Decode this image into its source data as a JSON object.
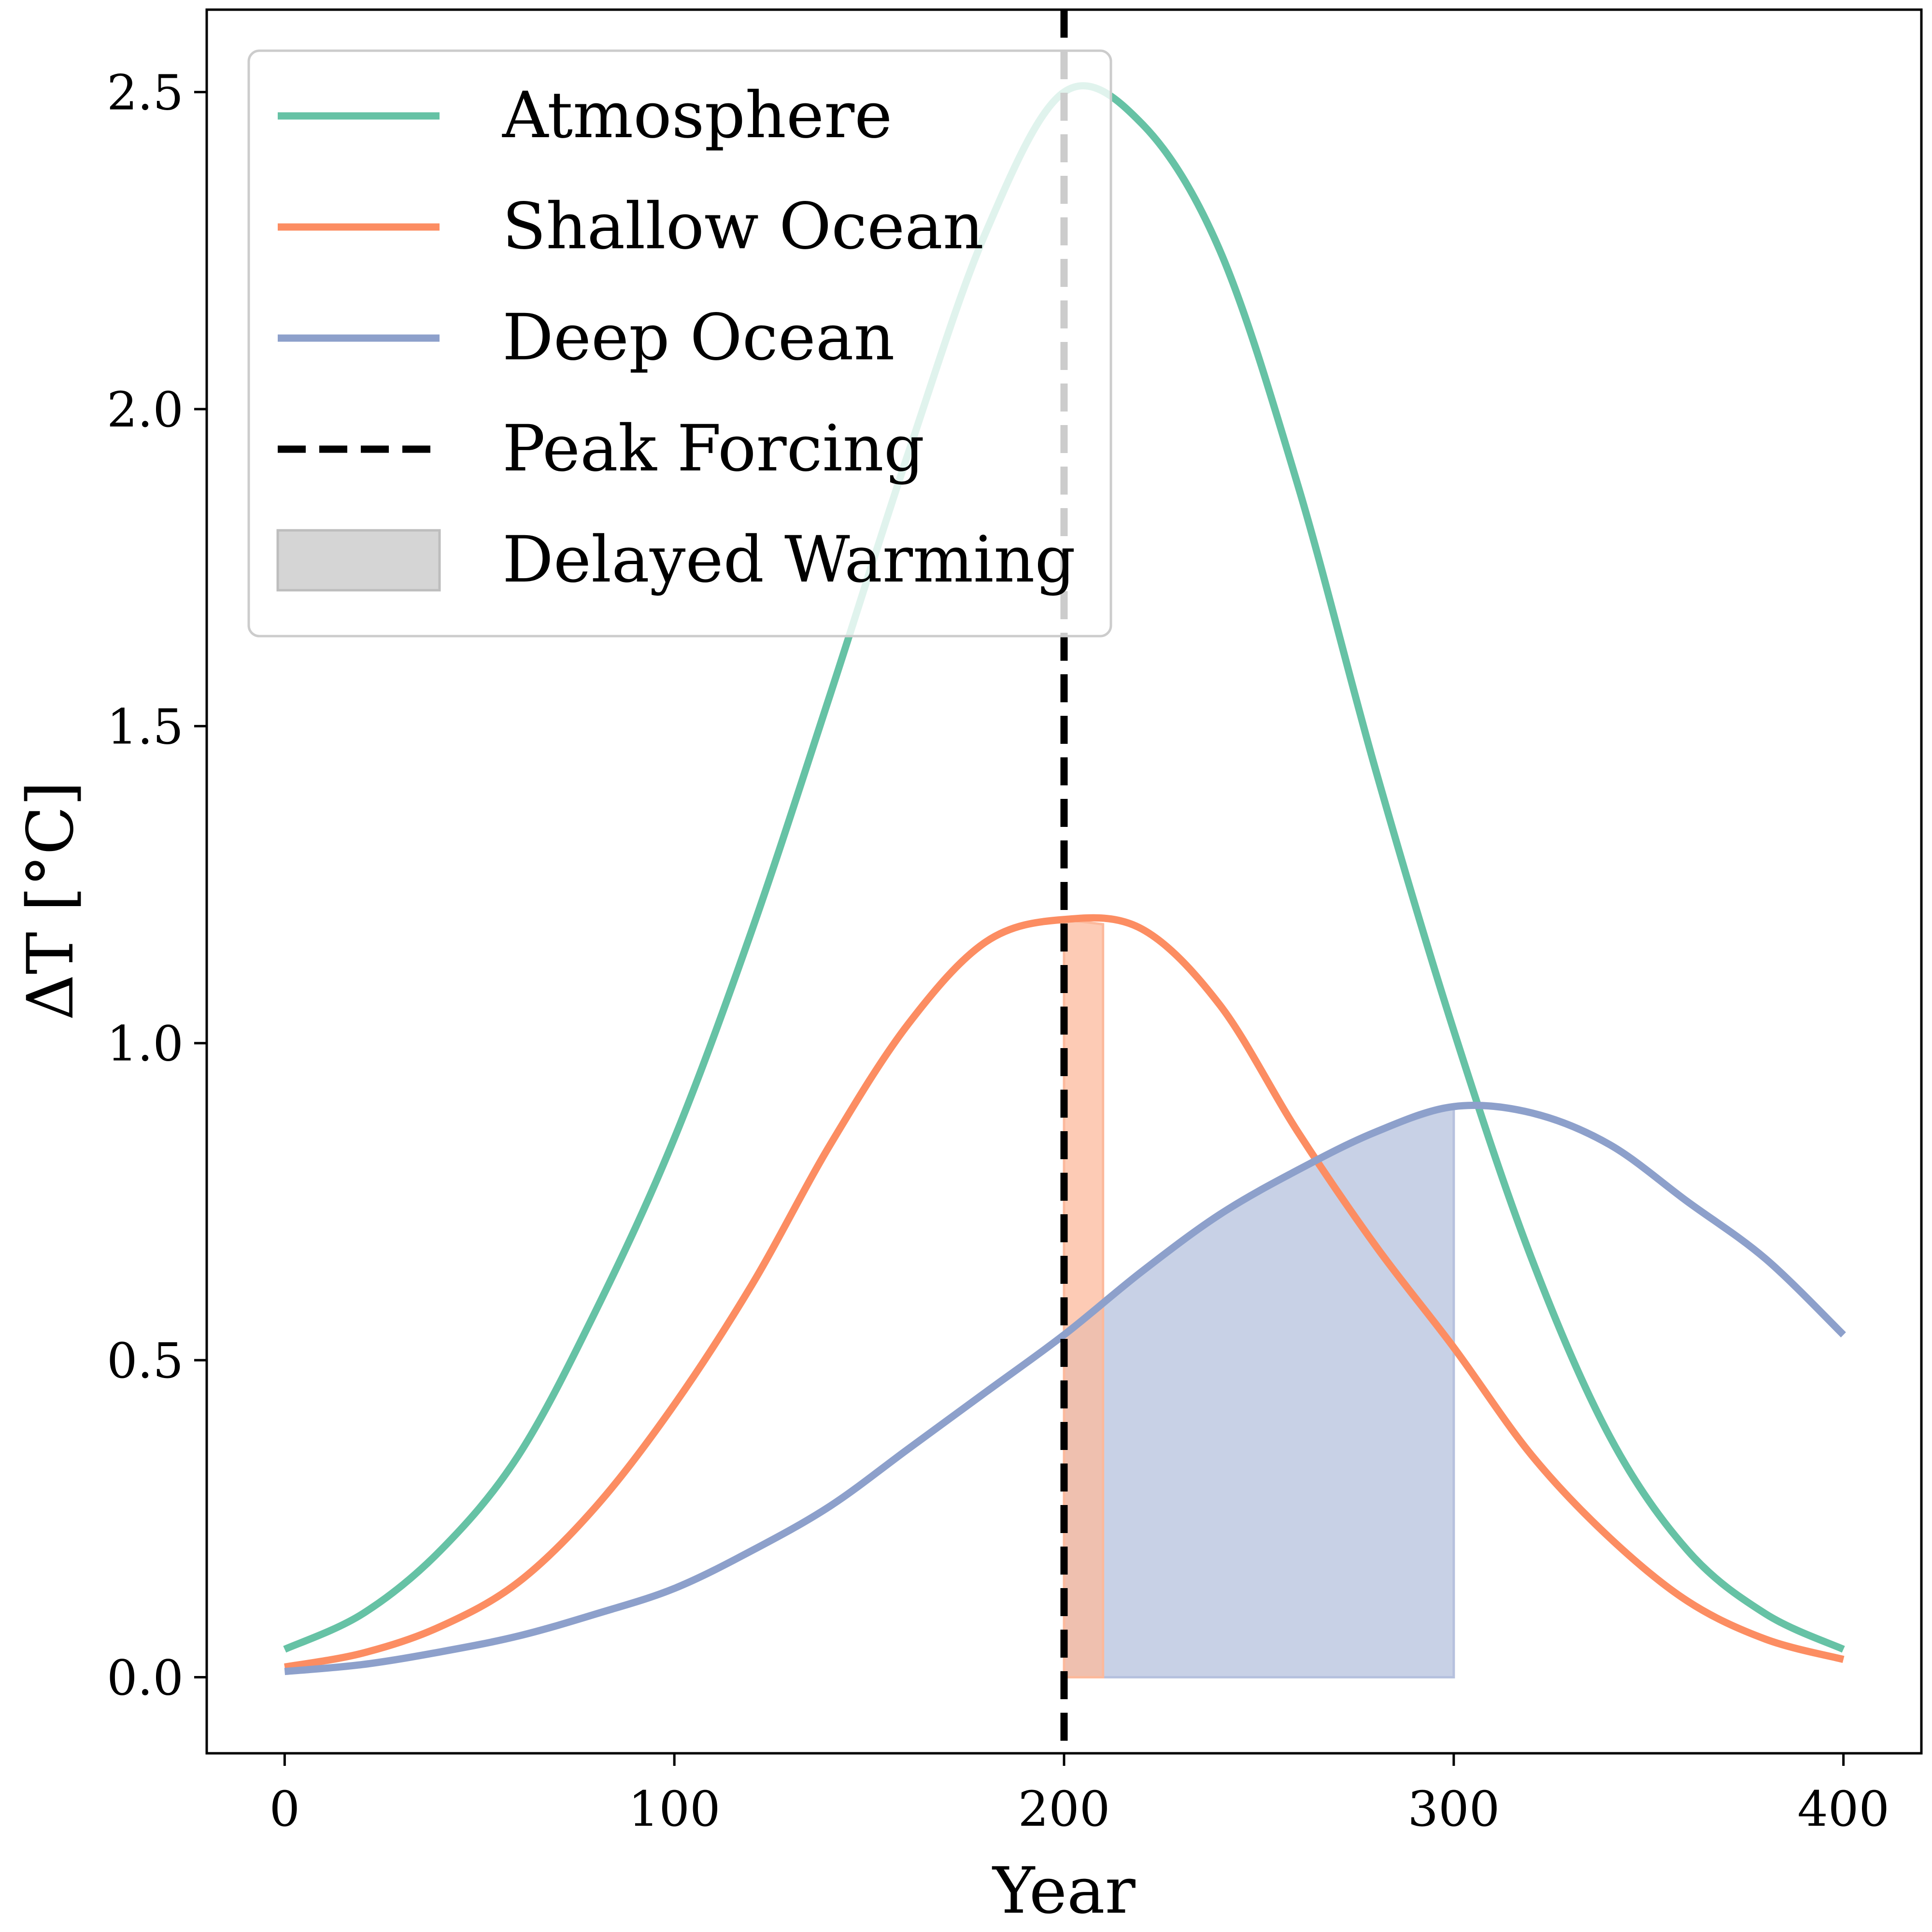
{
  "chart_data": {
    "type": "line",
    "xlabel": "Year",
    "ylabel": "ΔT [°C]",
    "xlim": [
      -20,
      420
    ],
    "ylim": [
      -0.12,
      2.63
    ],
    "x_ticks": [
      0,
      100,
      200,
      300,
      400
    ],
    "x_tick_labels": [
      "0",
      "100",
      "200",
      "300",
      "400"
    ],
    "y_ticks": [
      0.0,
      0.5,
      1.0,
      1.5,
      2.0,
      2.5
    ],
    "y_tick_labels": [
      "0.0",
      "0.5",
      "1.0",
      "1.5",
      "2.0",
      "2.5"
    ],
    "grid": false,
    "legend_position": "top-left",
    "x": [
      0,
      20,
      40,
      60,
      80,
      100,
      120,
      140,
      160,
      180,
      200,
      220,
      240,
      260,
      280,
      300,
      320,
      340,
      360,
      380,
      400
    ],
    "series": [
      {
        "name": "Atmosphere",
        "color": "#66c2a5",
        "values": [
          0.044,
          0.1,
          0.2,
          0.35,
          0.58,
          0.85,
          1.18,
          1.55,
          1.93,
          2.28,
          2.5,
          2.45,
          2.25,
          1.88,
          1.43,
          1.02,
          0.66,
          0.38,
          0.2,
          0.1,
          0.044
        ]
      },
      {
        "name": "Shallow Ocean",
        "color": "#fc8d62",
        "values": [
          0.016,
          0.038,
          0.08,
          0.15,
          0.27,
          0.43,
          0.62,
          0.84,
          1.03,
          1.16,
          1.195,
          1.18,
          1.06,
          0.86,
          0.68,
          0.52,
          0.35,
          0.22,
          0.12,
          0.06,
          0.028
        ]
      },
      {
        "name": "Deep Ocean",
        "color": "#8da0cb",
        "values": [
          0.009,
          0.02,
          0.04,
          0.065,
          0.1,
          0.14,
          0.2,
          0.27,
          0.36,
          0.45,
          0.54,
          0.64,
          0.73,
          0.8,
          0.86,
          0.9,
          0.89,
          0.84,
          0.75,
          0.66,
          0.54
        ]
      }
    ],
    "reference_line": {
      "name": "Peak Forcing",
      "x": 200,
      "color": "#000000"
    },
    "shaded_regions": [
      {
        "name": "Delayed Warming",
        "series": "Shallow Ocean",
        "x_start": 200,
        "x_end": 210,
        "color": "#fcb99c"
      },
      {
        "name": "Delayed Warming",
        "series": "Deep Ocean",
        "x_start": 200,
        "x_end": 300,
        "color": "#b6c1de"
      }
    ],
    "legend_patch_color": "#d5d5d5",
    "legend_order": [
      "Atmosphere",
      "Shallow Ocean",
      "Deep Ocean",
      "Peak Forcing",
      "Delayed Warming"
    ]
  }
}
